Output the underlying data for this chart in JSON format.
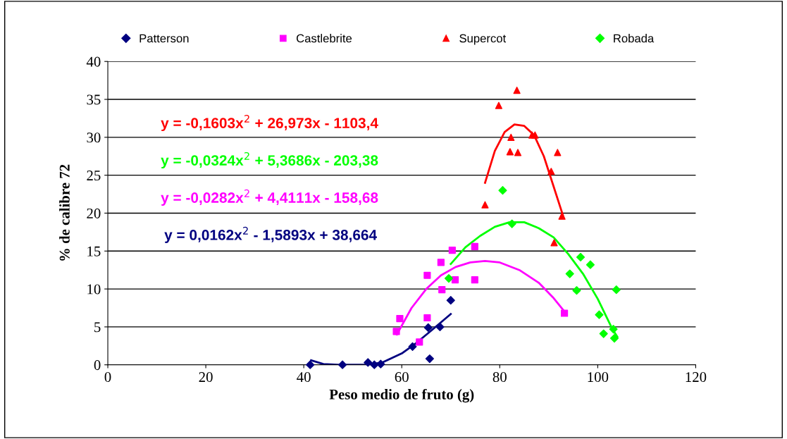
{
  "chart_data": {
    "type": "scatter",
    "xlabel": "Peso medio de fruto (g)",
    "ylabel": "% de calibre 72",
    "xlim": [
      0,
      120
    ],
    "xticks": [
      0,
      20,
      40,
      60,
      80,
      100,
      120
    ],
    "ylim": [
      0,
      40
    ],
    "yticks": [
      0,
      5,
      10,
      15,
      20,
      25,
      30,
      35,
      40
    ],
    "grid": "y",
    "legend": "top",
    "series": [
      {
        "name": "Patterson",
        "color": "#000080",
        "marker": "diamond",
        "x": [
          41.3,
          47.9,
          53.1,
          54.4,
          55.7,
          62.2,
          65.4,
          65.7,
          67.8,
          70.0
        ],
        "values": [
          0,
          0,
          0.3,
          0,
          0.1,
          2.4,
          4.9,
          0.8,
          5.0,
          8.5
        ]
      },
      {
        "name": "Castlebrite",
        "color": "#ff00ff",
        "marker": "square",
        "x": [
          58.9,
          59.6,
          63.6,
          65.2,
          65.2,
          68.0,
          68.2,
          70.3,
          70.9,
          74.9,
          74.9,
          93.2
        ],
        "values": [
          4.4,
          6.1,
          3.0,
          6.2,
          11.8,
          13.5,
          9.9,
          15.1,
          11.2,
          15.6,
          11.2,
          6.8
        ]
      },
      {
        "name": "Supercot",
        "color": "#ff0000",
        "marker": "triangle",
        "x": [
          83.5,
          79.8,
          82.3,
          86.6,
          87.2,
          82.1,
          83.7,
          91.8,
          90.5,
          77.0,
          92.7,
          91.1
        ],
        "values": [
          36.2,
          34.2,
          30.0,
          30.3,
          30.3,
          28.1,
          28.0,
          28.0,
          25.5,
          21.1,
          19.6,
          16.1
        ]
      },
      {
        "name": "Robada",
        "color": "#00ff00",
        "marker": "diamond",
        "x": [
          69.6,
          80.6,
          82.5,
          96.5,
          98.5,
          94.3,
          95.7,
          103.8,
          100.3,
          101.2,
          103.2,
          103.4
        ],
        "values": [
          11.4,
          23.0,
          18.6,
          14.2,
          13.2,
          12.0,
          9.8,
          9.9,
          6.6,
          4.1,
          4.7,
          3.5
        ]
      },
      {
        "type": "line",
        "color": "#ff0000",
        "marker": "none",
        "x": [
          77,
          79,
          81,
          83,
          85,
          87,
          89,
          91,
          93
        ],
        "values": [
          24,
          28.2,
          30.7,
          31.7,
          31.5,
          30.3,
          27.5,
          23.5,
          19.5
        ]
      },
      {
        "type": "line",
        "color": "#00ff00",
        "marker": "none",
        "x": [
          70,
          73,
          76,
          79,
          82,
          85,
          88,
          91,
          94,
          97,
          100,
          103,
          104
        ],
        "values": [
          13.3,
          15.5,
          17.0,
          18.2,
          18.8,
          18.8,
          18.0,
          16.8,
          14.6,
          12.0,
          8.7,
          4.7,
          3.7
        ]
      },
      {
        "type": "line",
        "color": "#ff00ff",
        "marker": "none",
        "x": [
          59,
          62,
          65,
          68,
          71,
          74,
          77,
          80,
          84,
          88,
          91,
          93
        ],
        "values": [
          4.0,
          7.5,
          10.0,
          11.8,
          12.9,
          13.5,
          13.7,
          13.5,
          12.5,
          10.8,
          8.8,
          7.2
        ]
      },
      {
        "type": "line",
        "color": "#000080",
        "marker": "none",
        "x": [
          41.5,
          44,
          47,
          50,
          53,
          56,
          60,
          63,
          66,
          70
        ],
        "values": [
          0.6,
          0.1,
          0,
          0,
          0,
          0.3,
          1.5,
          2.9,
          4.5,
          6.7
        ]
      }
    ],
    "annotations": [
      "y = -0,1603x$^{2}$ + 26,973x - 1103,4",
      "y = -0,0324x$^{2}$ + 5,3686x - 203,38",
      "y = -0,0282x$^{2}$ + 4,4111x - 158,68",
      "y = 0,0162x$^{2}$ - 1,5893x + 38,664"
    ]
  }
}
